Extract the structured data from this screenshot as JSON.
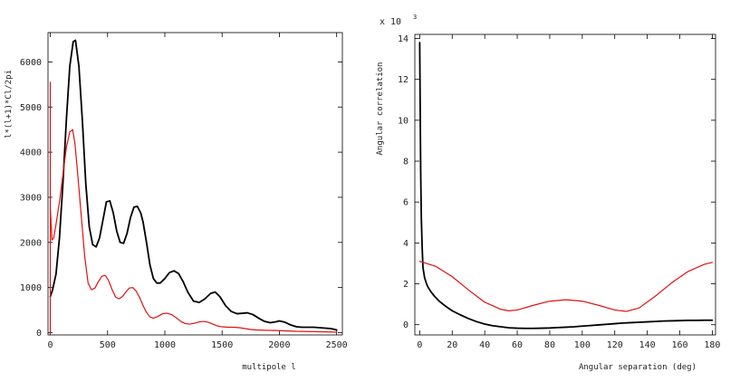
{
  "chart_data": [
    {
      "type": "line",
      "title": "",
      "xlabel": "multipole l",
      "ylabel": "l*(l+1)*Cl/2pi",
      "xlim": [
        -20,
        2550
      ],
      "ylim": [
        -50,
        6650
      ],
      "xticks": [
        0,
        500,
        1000,
        1500,
        2000,
        2500
      ],
      "yticks": [
        0,
        1000,
        2000,
        3000,
        4000,
        5000,
        6000
      ],
      "grid": false,
      "series": [
        {
          "name": "black",
          "color": "#000000",
          "x": [
            0,
            20,
            50,
            80,
            110,
            140,
            170,
            200,
            220,
            250,
            280,
            310,
            340,
            370,
            400,
            430,
            460,
            490,
            520,
            550,
            580,
            610,
            640,
            670,
            700,
            730,
            760,
            790,
            810,
            840,
            870,
            900,
            930,
            960,
            1000,
            1040,
            1080,
            1120,
            1160,
            1200,
            1250,
            1300,
            1350,
            1400,
            1440,
            1480,
            1530,
            1580,
            1630,
            1680,
            1720,
            1770,
            1820,
            1870,
            1920,
            1970,
            2000,
            2050,
            2100,
            2150,
            2200,
            2250,
            2300,
            2350,
            2400,
            2450,
            2500
          ],
          "y": [
            800,
            950,
            1300,
            2100,
            3300,
            4700,
            5900,
            6450,
            6480,
            5900,
            4700,
            3300,
            2350,
            1950,
            1900,
            2100,
            2500,
            2900,
            2920,
            2650,
            2250,
            2000,
            1980,
            2200,
            2550,
            2780,
            2800,
            2650,
            2450,
            2000,
            1500,
            1200,
            1100,
            1100,
            1200,
            1330,
            1370,
            1310,
            1130,
            900,
            700,
            670,
            750,
            870,
            900,
            800,
            600,
            470,
            420,
            430,
            440,
            400,
            320,
            250,
            220,
            240,
            260,
            230,
            170,
            130,
            120,
            120,
            120,
            110,
            100,
            90,
            60
          ]
        },
        {
          "name": "red",
          "color": "#e01010",
          "x": [
            0,
            15,
            30,
            50,
            80,
            110,
            140,
            170,
            195,
            215,
            240,
            270,
            300,
            330,
            360,
            390,
            420,
            450,
            480,
            510,
            540,
            570,
            600,
            630,
            660,
            690,
            720,
            750,
            780,
            810,
            840,
            870,
            900,
            940,
            980,
            1020,
            1060,
            1100,
            1140,
            1180,
            1220,
            1260,
            1300,
            1340,
            1380,
            1420,
            1460,
            1500,
            1550,
            1600,
            1650,
            1700,
            1750,
            1800,
            1850,
            1900,
            1950,
            2000,
            2050,
            2100,
            2150,
            2200,
            2250,
            2300,
            2350,
            2400,
            2450,
            2500
          ],
          "y": [
            2750,
            2050,
            2100,
            2400,
            2900,
            3500,
            4100,
            4450,
            4500,
            4200,
            3500,
            2600,
            1700,
            1100,
            950,
            990,
            1130,
            1250,
            1270,
            1150,
            950,
            790,
            750,
            800,
            900,
            990,
            1000,
            920,
            780,
            600,
            450,
            350,
            320,
            360,
            420,
            430,
            400,
            330,
            250,
            200,
            190,
            210,
            240,
            250,
            230,
            190,
            150,
            130,
            120,
            120,
            110,
            90,
            70,
            60,
            55,
            50,
            50,
            45,
            40,
            35,
            30,
            28,
            25,
            22,
            20,
            18,
            15,
            10
          ]
        },
        {
          "name": "red-spike",
          "color": "#e01010",
          "x": [
            0,
            0
          ],
          "y": [
            0,
            5550
          ]
        }
      ]
    },
    {
      "type": "line",
      "title": "",
      "xlabel": "Angular separation (deg)",
      "ylabel": "Angular correlation",
      "multiplier": "x 10",
      "multiplier_exp": "3",
      "xlim": [
        -3,
        182
      ],
      "ylim": [
        -0.5,
        14.2
      ],
      "xticks": [
        0,
        20,
        40,
        60,
        80,
        100,
        120,
        140,
        160,
        180
      ],
      "yticks": [
        0,
        2,
        4,
        6,
        8,
        10,
        12,
        14
      ],
      "grid": false,
      "series": [
        {
          "name": "black",
          "color": "#000000",
          "x": [
            0,
            0.3,
            0.6,
            1,
            1.5,
            2,
            3,
            4,
            5,
            7,
            9,
            12,
            16,
            20,
            25,
            30,
            35,
            40,
            45,
            50,
            55,
            60,
            65,
            70,
            75,
            80,
            85,
            90,
            95,
            100,
            105,
            110,
            115,
            120,
            125,
            130,
            135,
            140,
            145,
            150,
            155,
            160,
            165,
            170,
            175,
            180
          ],
          "y": [
            13.8,
            10.5,
            7.5,
            5.2,
            3.8,
            2.8,
            2.3,
            2.05,
            1.85,
            1.6,
            1.4,
            1.15,
            0.9,
            0.68,
            0.48,
            0.3,
            0.15,
            0.03,
            -0.05,
            -0.1,
            -0.15,
            -0.17,
            -0.18,
            -0.18,
            -0.17,
            -0.16,
            -0.14,
            -0.12,
            -0.1,
            -0.07,
            -0.04,
            -0.01,
            0.02,
            0.05,
            0.08,
            0.1,
            0.12,
            0.14,
            0.16,
            0.18,
            0.19,
            0.2,
            0.21,
            0.21,
            0.22,
            0.22
          ]
        },
        {
          "name": "red",
          "color": "#e01010",
          "x": [
            0,
            10,
            20,
            30,
            40,
            50,
            55,
            60,
            70,
            80,
            90,
            100,
            110,
            120,
            127,
            135,
            145,
            155,
            165,
            175,
            180
          ],
          "y": [
            3.1,
            2.85,
            2.35,
            1.7,
            1.1,
            0.75,
            0.68,
            0.72,
            0.95,
            1.15,
            1.22,
            1.15,
            0.95,
            0.72,
            0.65,
            0.82,
            1.4,
            2.05,
            2.6,
            2.95,
            3.05
          ]
        }
      ]
    }
  ]
}
